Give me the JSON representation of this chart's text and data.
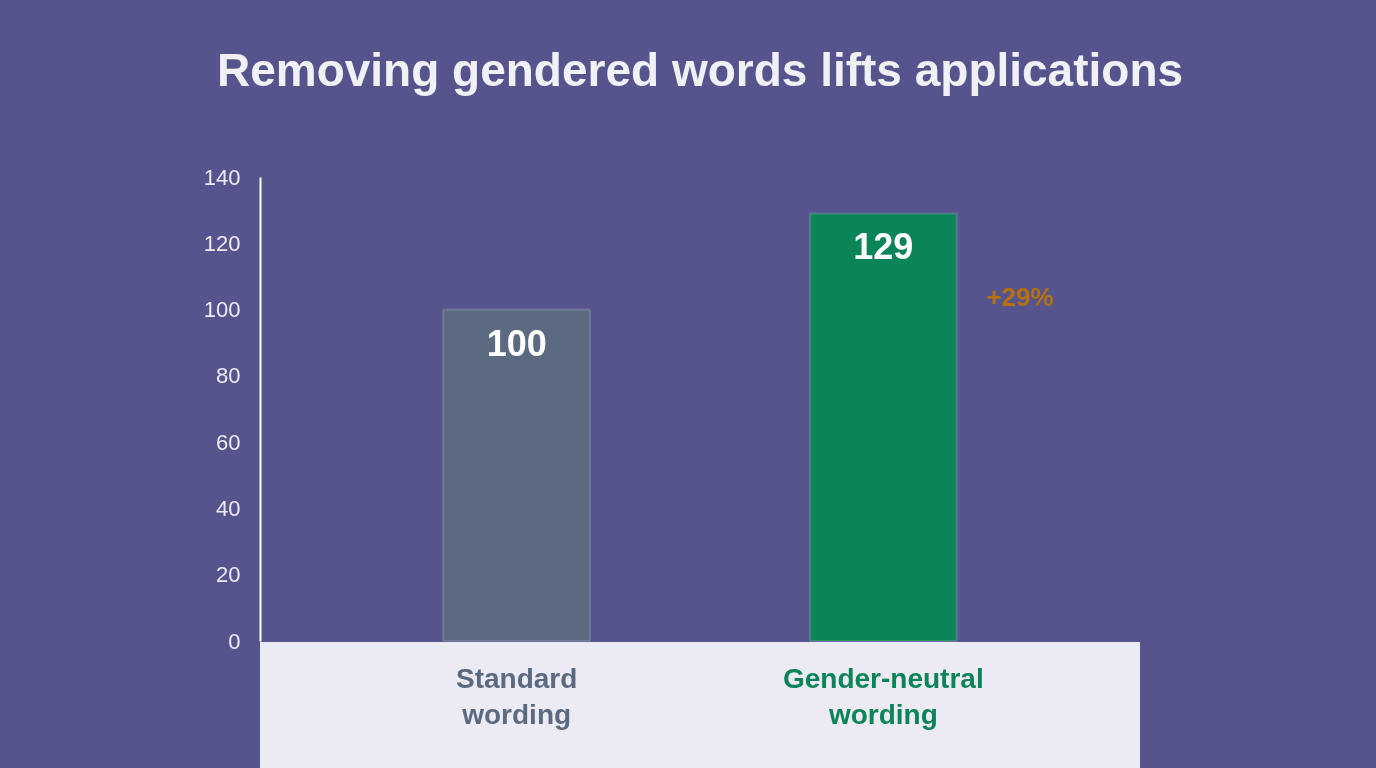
{
  "chart_data": {
    "type": "bar",
    "title": "Removing gendered words lifts applications",
    "categories": [
      "Standard wording",
      "Gender-neutral wording"
    ],
    "values": [
      100,
      129
    ],
    "colors": [
      "#5b6a80",
      "#0b8457"
    ],
    "data_labels": true,
    "ylim": [
      0,
      140
    ],
    "yticks": [
      0,
      20,
      40,
      60,
      80,
      100,
      120,
      140
    ],
    "grid": false,
    "annotations": [
      "+29%"
    ]
  }
}
